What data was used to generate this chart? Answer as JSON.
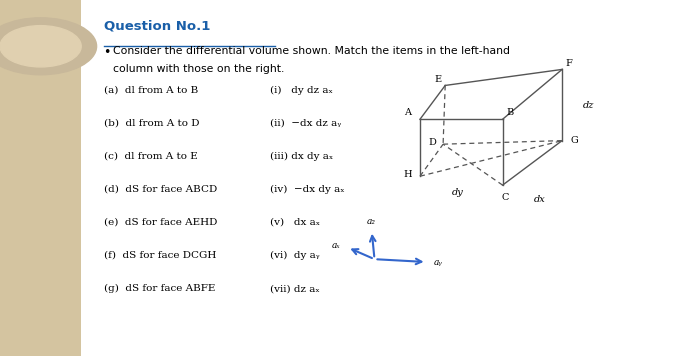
{
  "bg_color": "#f0e8d8",
  "white_bg": "#ffffff",
  "title": "Question No.1",
  "subtitle_line1": "Consider the differential volume shown. Match the items in the left-hand",
  "subtitle_line2": "column with those on the right.",
  "left_items": [
    "(a)  dl from A to B",
    "(b)  dl from A to D",
    "(c)  dl from A to E",
    "(d)  dS for face ABCD",
    "(e)  dS for face AEHD",
    "(f)  dS for face DCGH",
    "(g)  dS for face ABFE"
  ],
  "right_items": [
    "(i)   dy dz aₓ",
    "(ii)  −dx dz aᵧ",
    "(iii) dx dy aₓ",
    "(iv)  −dx dy aₓ",
    "(v)   dx aₓ",
    "(vi)  dy aᵧ",
    "(vii) dz aₓ"
  ],
  "title_color": "#1a5fa8",
  "text_color": "#000000",
  "axis_color": "#3366cc",
  "cube_color": "#555555",
  "strip_color": "#d4c4a0",
  "circle_outer": "#c8b89a",
  "circle_inner": "#e0d0b0"
}
